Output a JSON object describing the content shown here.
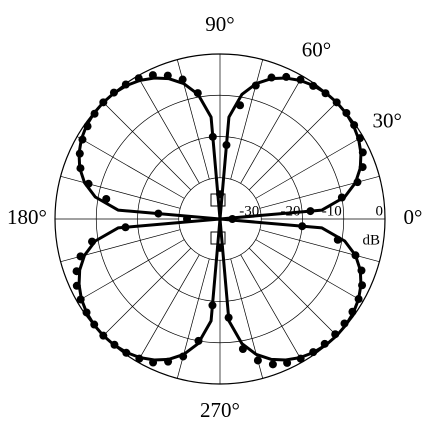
{
  "chart_data": {
    "type": "polar",
    "rlim": [
      -40,
      0
    ],
    "rticks": [
      -30,
      -20,
      -10,
      0
    ],
    "r_unit": "dB",
    "theta_grid": [
      0,
      15,
      30,
      45,
      60,
      75,
      90,
      105,
      120,
      135,
      150,
      165,
      180,
      195,
      210,
      225,
      240,
      255,
      270,
      285,
      300,
      315,
      330,
      345
    ],
    "theta_ticks": [
      {
        "value": 0,
        "label": "0°"
      },
      {
        "value": 30,
        "label": "30°"
      },
      {
        "value": 60,
        "label": "60°"
      },
      {
        "value": 90,
        "label": "90°"
      },
      {
        "value": 180,
        "label": "180°"
      },
      {
        "value": 270,
        "label": "270°"
      }
    ],
    "series": [
      {
        "style": "line",
        "color": "#000000",
        "theta": [
          0,
          5,
          10,
          15,
          20,
          25,
          30,
          35,
          40,
          45,
          50,
          55,
          60,
          65,
          70,
          75,
          80,
          85,
          90,
          95,
          100,
          105,
          110,
          115,
          120,
          125,
          130,
          135,
          140,
          145,
          150,
          155,
          160,
          165,
          170,
          175,
          180,
          185,
          190,
          195,
          200,
          205,
          210,
          215,
          220,
          225,
          230,
          235,
          240,
          245,
          250,
          255,
          260,
          265,
          270,
          275,
          280,
          285,
          290,
          295,
          300,
          305,
          310,
          315,
          320,
          325,
          330,
          335,
          340,
          345,
          350,
          355
        ],
        "values": [
          -40,
          -15.2,
          -9.3,
          -6,
          -3.8,
          -2.3,
          -1.2,
          -0.5,
          -0.1,
          0,
          -0.1,
          -0.5,
          -1.2,
          -2.3,
          -3.8,
          -6,
          -9.3,
          -15.2,
          -40,
          -15.2,
          -9.3,
          -6,
          -3.8,
          -2.3,
          -1.2,
          -0.5,
          -0.1,
          0,
          -0.1,
          -0.5,
          -1.2,
          -2.3,
          -3.8,
          -6,
          -9.3,
          -15.2,
          -40,
          -15.2,
          -9.3,
          -6,
          -3.8,
          -2.3,
          -1.2,
          -0.5,
          -0.1,
          0,
          -0.1,
          -0.5,
          -1.2,
          -2.3,
          -3.8,
          -6,
          -9.3,
          -15.2,
          -40,
          -15.2,
          -9.3,
          -6,
          -3.8,
          -2.3,
          -1.2,
          -0.5,
          -0.1,
          0,
          -0.1,
          -0.5,
          -1.2,
          -2.3,
          -3.8,
          -6,
          -9.3,
          -15.2
        ]
      },
      {
        "style": "markers",
        "color": "#000000",
        "theta": [
          0,
          5,
          10,
          15,
          20,
          25,
          30,
          35,
          40,
          45,
          50,
          55,
          60,
          65,
          70,
          75,
          80,
          85,
          90,
          95,
          100,
          105,
          110,
          115,
          120,
          125,
          130,
          135,
          140,
          145,
          150,
          155,
          160,
          165,
          170,
          175,
          180,
          185,
          190,
          195,
          200,
          205,
          210,
          215,
          220,
          225,
          230,
          235,
          240,
          245,
          250,
          255,
          260,
          265,
          270,
          275,
          280,
          285,
          290,
          295,
          300,
          305,
          310,
          315,
          320,
          325,
          330,
          335,
          340,
          345,
          350,
          355
        ],
        "values": [
          -37,
          -18,
          -10,
          -5.5,
          -3.2,
          -1.8,
          -0.8,
          -0.3,
          0,
          0,
          -0.2,
          -0.6,
          -1,
          -2,
          -3.5,
          -6.5,
          -12,
          -22,
          -34,
          -20,
          -9,
          -5,
          -3,
          -1.5,
          -0.6,
          -0.2,
          0,
          0,
          -0.3,
          -0.8,
          -1.5,
          -2.5,
          -4,
          -7,
          -12,
          -25,
          -32,
          -17,
          -8.5,
          -5,
          -3,
          -1.7,
          -1,
          -0.5,
          -0.2,
          0,
          -0.2,
          -0.4,
          -0.9,
          -1.6,
          -3.2,
          -5.5,
          -10,
          -19,
          -33,
          -16,
          -8,
          -4.5,
          -2.5,
          -1.5,
          -0.9,
          -0.6,
          -0.5,
          -0.5,
          -0.6,
          -0.8,
          -1.2,
          -2,
          -3.5,
          -6,
          -11,
          -20
        ]
      }
    ]
  }
}
